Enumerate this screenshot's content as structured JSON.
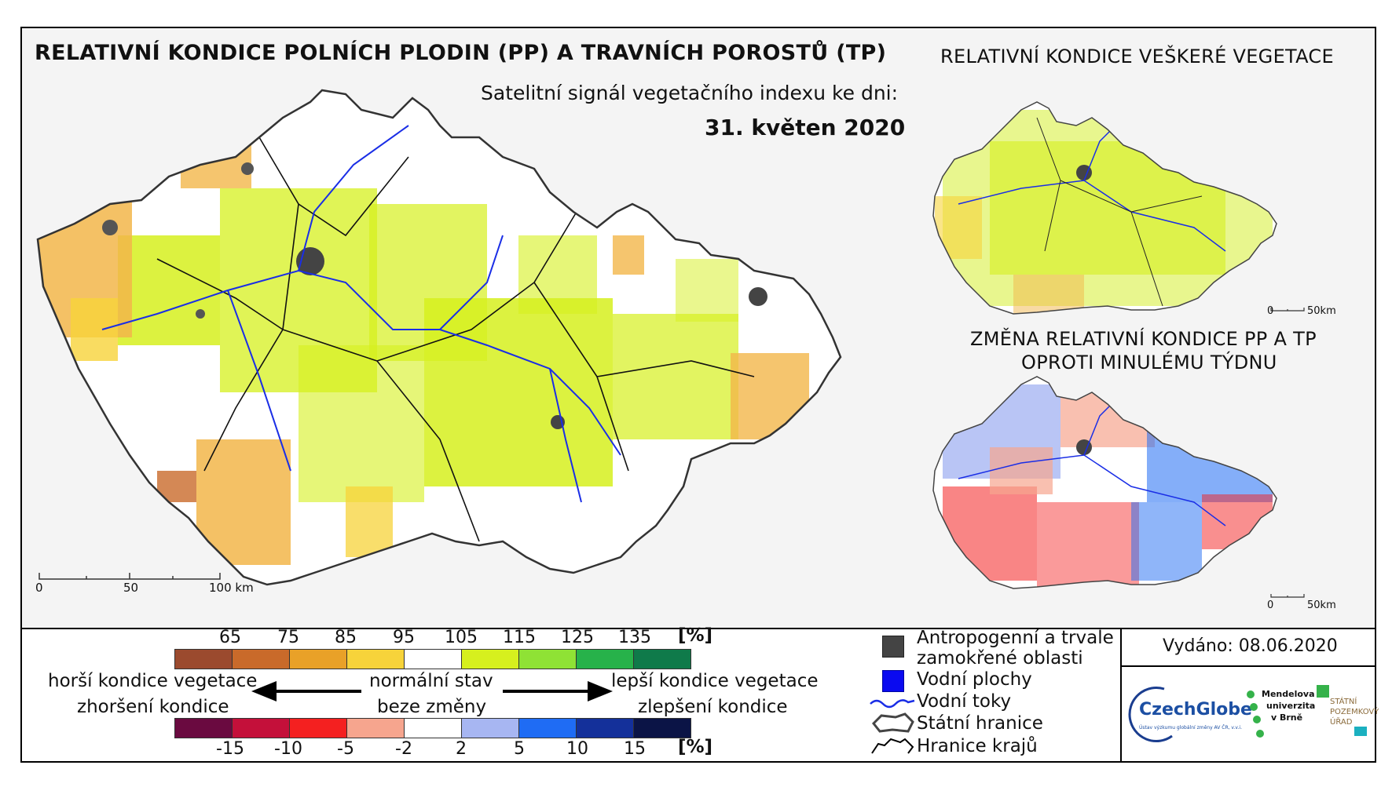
{
  "main_title": "RELATIVNÍ KONDICE POLNÍCH PLODIN (PP) A TRAVNÍCH POROSTŮ (TP)",
  "subtitle": "Satelitní signál vegetačního indexu ke dni:",
  "date": "31. květen 2020",
  "right_top_title": "RELATIVNÍ KONDICE VEŠKERÉ VEGETACE",
  "right_bottom_title_line1": "ZMĚNA RELATIVNÍ KONDICE PP A TP",
  "right_bottom_title_line2": "OPROTI MINULÉMU TÝDNU",
  "main_scale": {
    "ticks": [
      "0",
      "50",
      "100 km"
    ]
  },
  "small_scale": {
    "ticks": [
      "0",
      "50km"
    ]
  },
  "legend_condition": {
    "ticks": [
      "65",
      "75",
      "85",
      "95",
      "105",
      "115",
      "125",
      "135"
    ],
    "unit": "[%]",
    "colors": [
      "#9b4a2e",
      "#c96a2a",
      "#e9a128",
      "#f7d33a",
      "#ffffff",
      "#d6f01e",
      "#8fe235",
      "#27b24a",
      "#0f7a4a"
    ]
  },
  "legend_change": {
    "ticks": [
      "-15",
      "-10",
      "-5",
      "-2",
      "2",
      "5",
      "10",
      "15"
    ],
    "unit": "[%]",
    "colors": [
      "#6a0a40",
      "#c4103a",
      "#f42020",
      "#f6a58e",
      "#ffffff",
      "#a7b6f2",
      "#1f6cf4",
      "#14309a",
      "#0b1446"
    ]
  },
  "legend_text": {
    "worse_1": "horší kondice vegetace",
    "worse_2": "zhoršení kondice",
    "normal_1": "normální stav",
    "normal_2": "beze změny",
    "better_1": "lepší kondice vegetace",
    "better_2": "zlepšení kondice"
  },
  "legend_symbols": {
    "anthropogenic_1": "Antropogenní a trvale",
    "anthropogenic_2": "zamokřené oblasti",
    "water_bodies": "Vodní plochy",
    "rivers": "Vodní toky",
    "state_border": "Státní hranice",
    "region_border": "Hranice krajů"
  },
  "issued": "Vydáno: 08.06.2020",
  "logos": {
    "czechglobe": "CzechGlobe",
    "czechglobe_sub": "Ústav výzkumu globální změny AV ČR, v.v.i.",
    "mendel_1": "Mendelova",
    "mendel_2": "univerzita",
    "mendel_3": "v Brně",
    "spu_1": "STÁTNÍ",
    "spu_2": "POZEMKOVÝ",
    "spu_3": "ÚŘAD"
  }
}
